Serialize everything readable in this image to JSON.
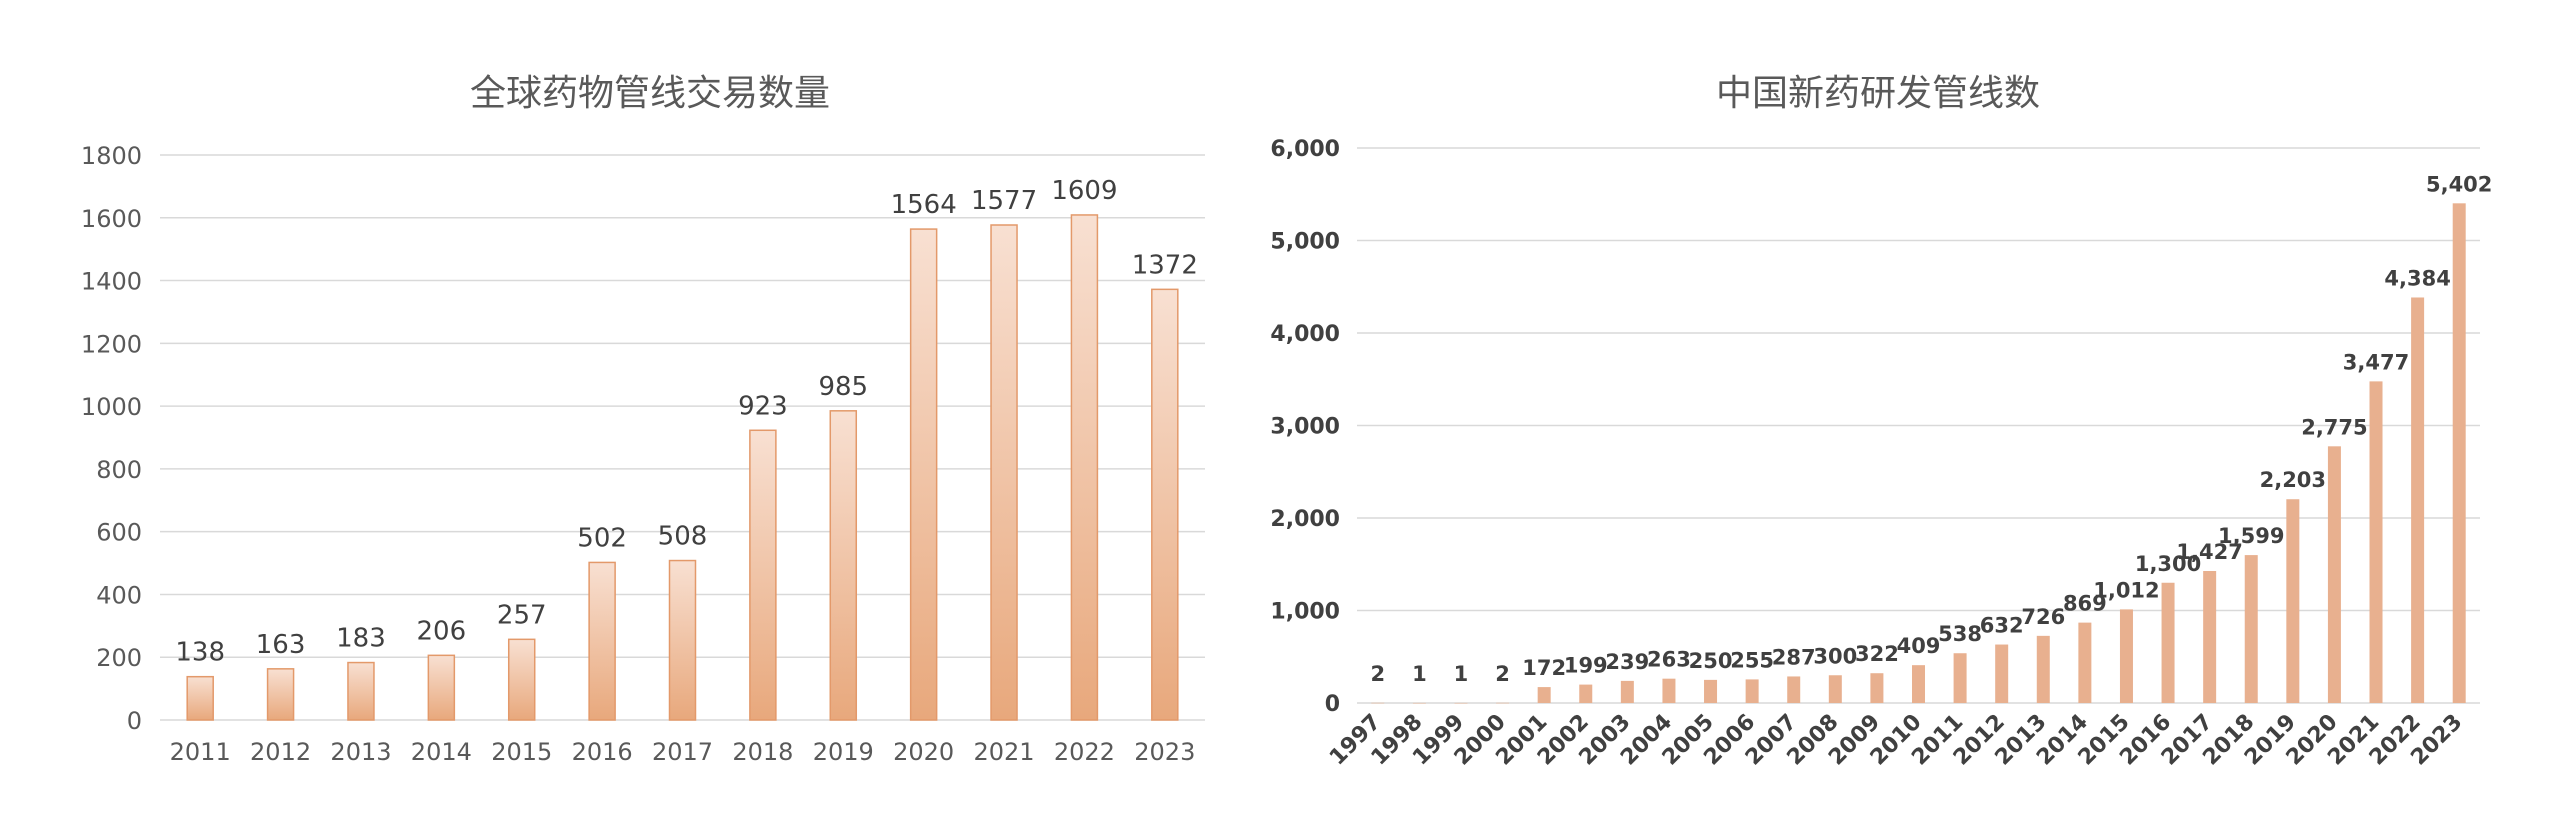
{
  "chart_data": [
    {
      "type": "bar",
      "title": "全球药物管线交易数量",
      "categories": [
        "2011",
        "2012",
        "2013",
        "2014",
        "2015",
        "2016",
        "2017",
        "2018",
        "2019",
        "2020",
        "2021",
        "2022",
        "2023"
      ],
      "values": [
        138,
        163,
        183,
        206,
        257,
        502,
        508,
        923,
        985,
        1564,
        1577,
        1609,
        1372
      ],
      "value_labels": [
        "138",
        "163",
        "183",
        "206",
        "257",
        "502",
        "508",
        "923",
        "985",
        "1564",
        "1577",
        "1609",
        "1372"
      ],
      "y_ticks": [
        "0",
        "200",
        "400",
        "600",
        "800",
        "1000",
        "1200",
        "1400",
        "1600",
        "1800"
      ],
      "ylim": [
        0,
        1800
      ],
      "grid": true,
      "bar_color": "#e8a87c",
      "bar_color_top": "#f8e0d2"
    },
    {
      "type": "bar",
      "title": "中国新药研发管线数",
      "categories": [
        "1997",
        "1998",
        "1999",
        "2000",
        "2001",
        "2002",
        "2003",
        "2004",
        "2005",
        "2006",
        "2007",
        "2008",
        "2009",
        "2010",
        "2011",
        "2012",
        "2013",
        "2014",
        "2015",
        "2016",
        "2017",
        "2018",
        "2019",
        "2020",
        "2021",
        "2022",
        "2023"
      ],
      "values": [
        2,
        1,
        1,
        2,
        172,
        199,
        239,
        263,
        250,
        255,
        287,
        300,
        322,
        409,
        538,
        632,
        726,
        869,
        1012,
        1300,
        1427,
        1599,
        2203,
        2775,
        3477,
        4384,
        5402
      ],
      "value_labels": [
        "2",
        "1",
        "1",
        "2",
        "172",
        "199",
        "239",
        "263",
        "250",
        "255",
        "287",
        "300",
        "322",
        "409",
        "538",
        "632",
        "726",
        "869",
        "1,012",
        "1,300",
        "1,427",
        "1,599",
        "2,203",
        "2,775",
        "3,477",
        "4,384",
        "5,402"
      ],
      "y_ticks": [
        "0",
        "1,000",
        "2,000",
        "3,000",
        "4,000",
        "5,000",
        "6,000"
      ],
      "ylim": [
        0,
        6000
      ],
      "grid": true,
      "bar_color": "#e8b08f"
    }
  ]
}
